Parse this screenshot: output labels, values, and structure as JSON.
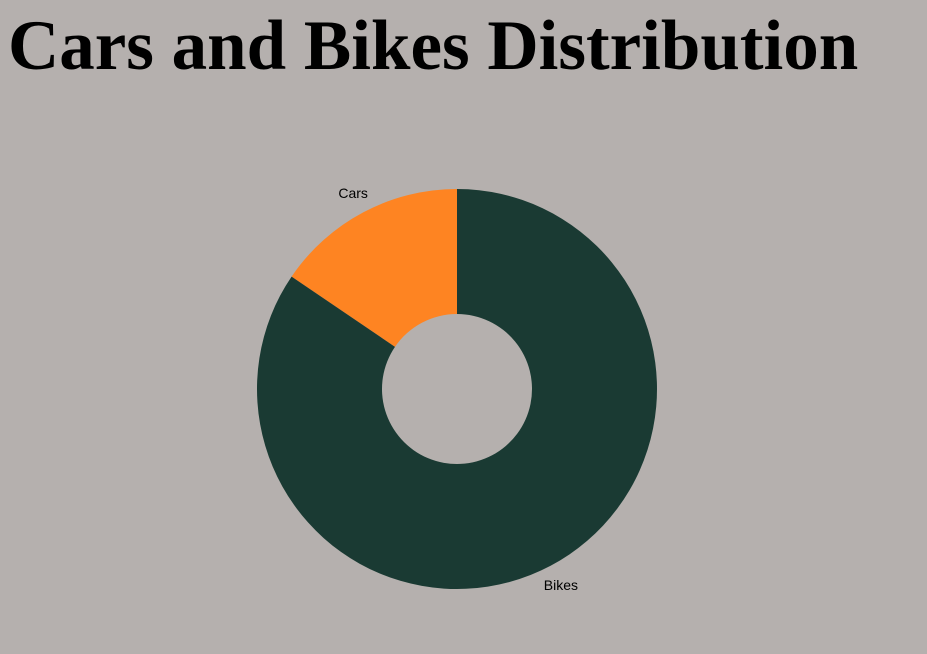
{
  "page": {
    "title": "Cars and Bikes Distribution",
    "background": "#b5b0ae"
  },
  "chart_data": {
    "type": "pie",
    "donut": true,
    "title": "Cars and Bikes Distribution",
    "categories": [
      "Cars",
      "Bikes"
    ],
    "values": [
      15.5,
      84.5
    ],
    "colors": [
      "#fe8422",
      "#1a3a33"
    ],
    "labels_shown": [
      "Cars",
      "Bikes"
    ],
    "legend": "none"
  }
}
